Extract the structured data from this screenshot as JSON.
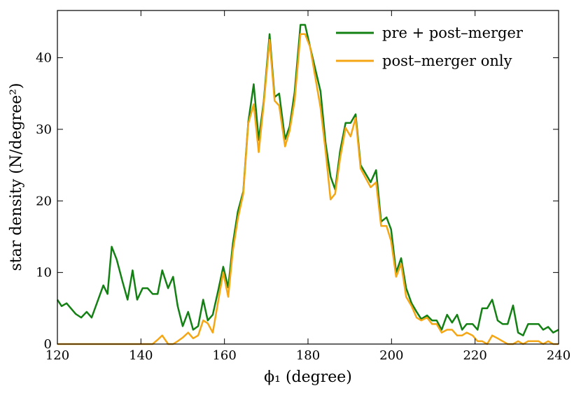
{
  "chart_data": {
    "type": "line",
    "xlabel": "ϕ₁ (degree)",
    "ylabel": "star density (N/degree²)",
    "x": [
      120,
      121,
      122.2,
      124.4,
      125.7,
      127,
      128.2,
      131,
      132,
      133,
      134.2,
      135.6,
      136.8,
      138,
      139.1,
      140.4,
      141.6,
      142.8,
      144,
      145.1,
      146.5,
      147.7,
      148.8,
      150,
      151.3,
      152.5,
      153.7,
      154.9,
      156,
      157.2,
      158.5,
      159.7,
      160.9,
      162,
      163.2,
      164.5,
      165.7,
      167,
      168.2,
      169.4,
      170.8,
      172,
      173.1,
      174.5,
      175.6,
      176.8,
      178.2,
      179.3,
      180.5,
      183,
      184.2,
      185.4,
      186.5,
      187.7,
      189,
      190.2,
      191.4,
      192.6,
      195,
      196.3,
      197.5,
      198.8,
      199.9,
      201.1,
      202.3,
      203.5,
      204.8,
      206,
      207.1,
      208.5,
      209.7,
      210.8,
      212,
      213.3,
      214.5,
      215.7,
      216.9,
      218,
      219.4,
      220.6,
      221.7,
      222.9,
      224.1,
      225.4,
      226.6,
      227.8,
      229.1,
      230.3,
      231.5,
      232.7,
      234,
      235.2,
      236.3,
      237.5,
      238.7,
      240
    ],
    "series": [
      {
        "name": "pre + post–merger",
        "color": "#138013",
        "values": [
          6.2,
          5.3,
          5.7,
          4.2,
          3.7,
          4.5,
          3.7,
          8.2,
          7.0,
          13.6,
          11.8,
          8.7,
          6.2,
          10.3,
          6.2,
          7.8,
          7.8,
          7.0,
          7.0,
          10.3,
          7.8,
          9.4,
          5.3,
          2.5,
          4.5,
          2.0,
          2.5,
          6.2,
          3.3,
          4.1,
          7.5,
          10.8,
          7.9,
          14,
          18.5,
          21.3,
          31,
          36.3,
          28.5,
          33.9,
          43.3,
          34.5,
          35.0,
          28.6,
          30.4,
          35.2,
          44.6,
          44.6,
          41.5,
          35.3,
          28.1,
          23.4,
          21.6,
          27,
          30.9,
          30.9,
          32.1,
          25,
          22.6,
          24.3,
          17.1,
          17.7,
          16.0,
          10.0,
          12.0,
          7.8,
          5.7,
          4.5,
          3.5,
          4.0,
          3.3,
          3.3,
          2.0,
          4.1,
          3.0,
          4.1,
          2.0,
          2.8,
          2.8,
          2.0,
          5.0,
          5.0,
          6.2,
          3.3,
          2.8,
          2.8,
          5.4,
          1.6,
          1.2,
          2.8,
          2.8,
          2.8,
          2.0,
          2.4,
          1.6,
          2.0
        ]
      },
      {
        "name": "post–merger only",
        "color": "#f5a614",
        "values": [
          0,
          0,
          0,
          0,
          0,
          0,
          0,
          0,
          0,
          0,
          0,
          0,
          0,
          0,
          0,
          0,
          0,
          0,
          0.6,
          1.2,
          0,
          0,
          0.4,
          0.9,
          1.6,
          0.8,
          1.2,
          3.3,
          2.9,
          1.6,
          6,
          10.0,
          6.6,
          13,
          17.5,
          21,
          30.8,
          33.5,
          26.8,
          33.5,
          42.5,
          34,
          33.3,
          27.6,
          29.8,
          34,
          43.3,
          43.3,
          41.5,
          33,
          27,
          20.2,
          21,
          26,
          30.2,
          29,
          31.6,
          24.5,
          21.9,
          22.6,
          16.5,
          16.5,
          14.4,
          9.4,
          11.2,
          6.6,
          5.3,
          3.7,
          3.3,
          3.7,
          2.8,
          2.8,
          1.6,
          2.0,
          2.0,
          1.2,
          1.2,
          1.6,
          1.2,
          0.4,
          0.4,
          0,
          1.2,
          0.8,
          0.4,
          0,
          0,
          0.4,
          0,
          0.4,
          0.4,
          0.4,
          0,
          0.4,
          0,
          0
        ]
      }
    ],
    "xlim": [
      120,
      240
    ],
    "ylim": [
      0,
      46.6
    ],
    "xticks": [
      120,
      140,
      160,
      180,
      200,
      220,
      240
    ],
    "yticks": [
      0,
      10,
      20,
      30,
      40
    ],
    "legend": "upper right"
  }
}
